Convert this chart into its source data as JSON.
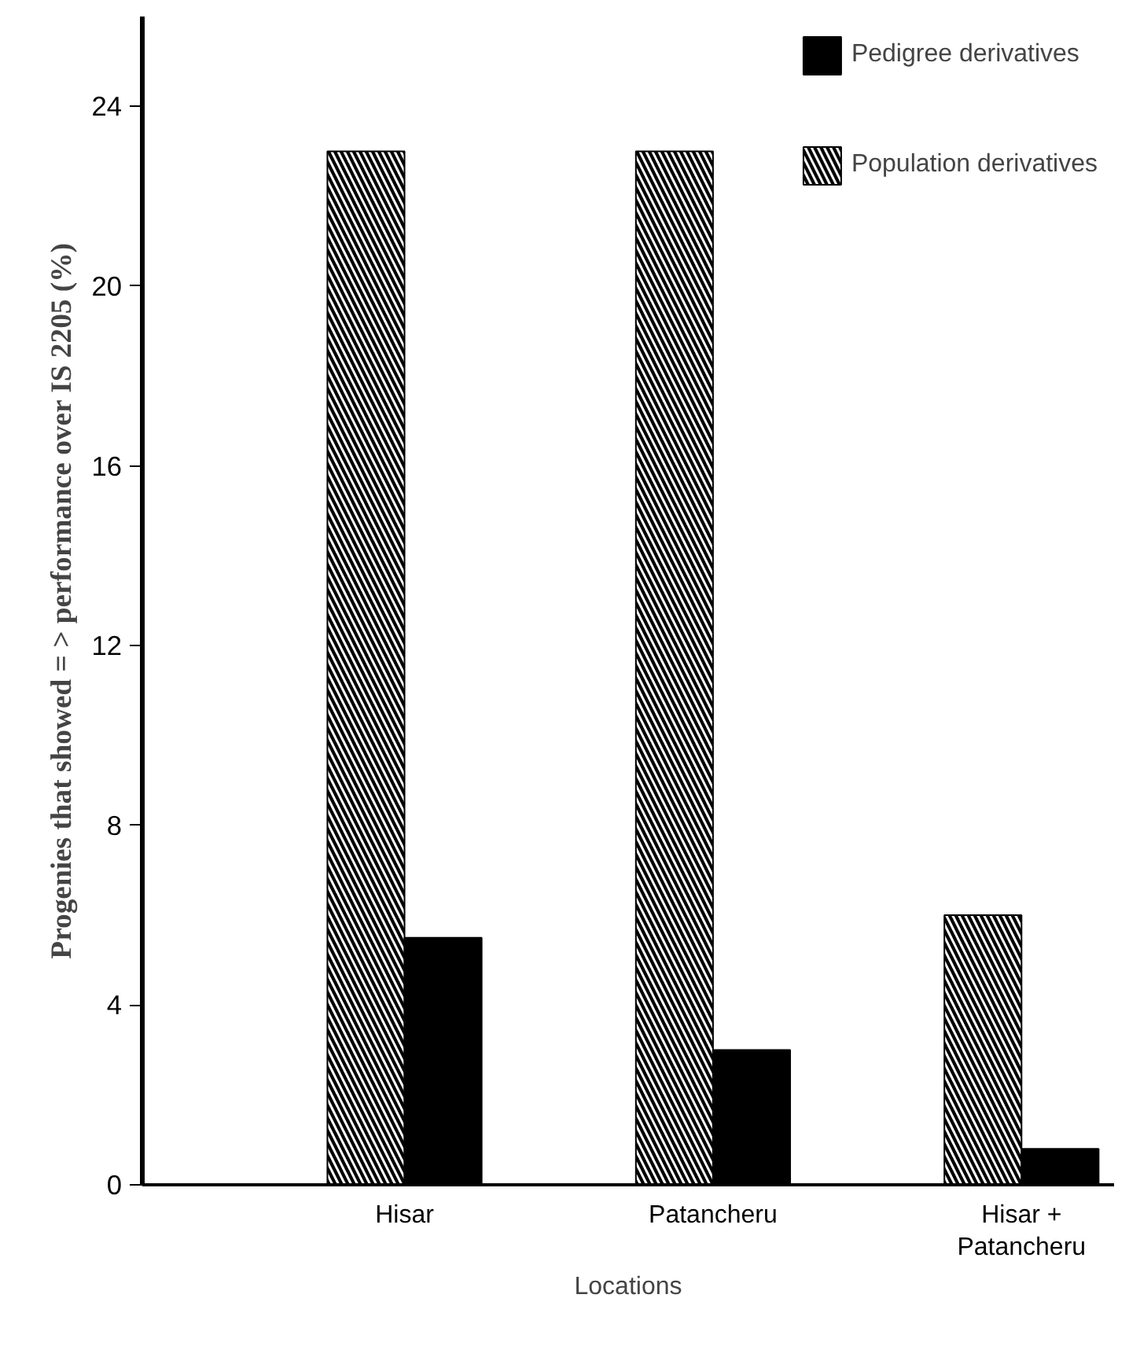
{
  "chart_data": {
    "type": "bar",
    "xlabel": "Locations",
    "ylabel": "Progenies that showed = > performance over IS 2205 (%)",
    "categories": [
      "Hisar",
      "Patancheru",
      "Hisar + Patancheru"
    ],
    "series": [
      {
        "name": "Population derivatives",
        "color": "#000000",
        "values": [
          23,
          23,
          6
        ]
      },
      {
        "name": "Pedigree derivatives",
        "color": "#000000",
        "values": [
          5.5,
          3,
          0.8
        ]
      }
    ],
    "ylim": [
      0,
      26
    ],
    "yticks": [
      0,
      4,
      8,
      12,
      16,
      20,
      24
    ],
    "grid": false,
    "legend": "top right"
  }
}
